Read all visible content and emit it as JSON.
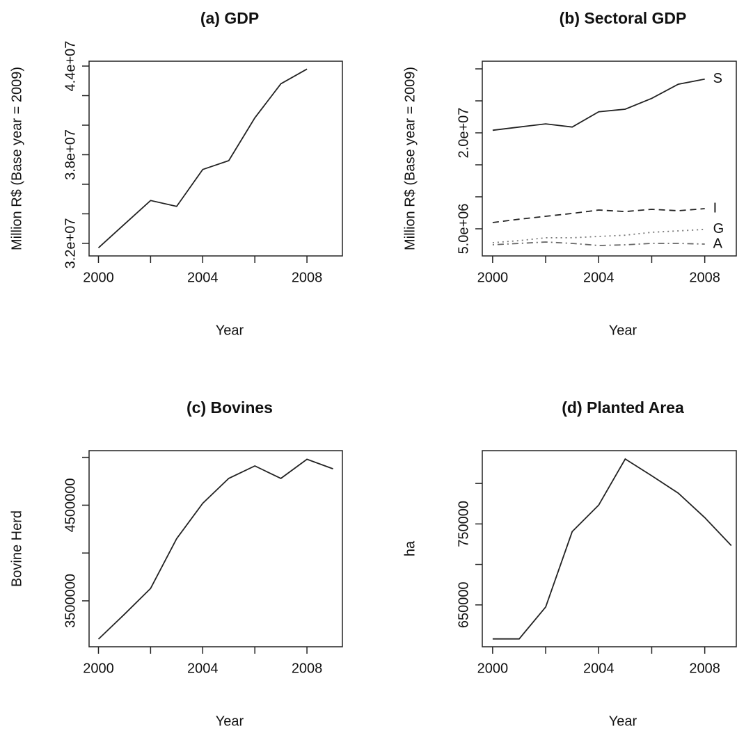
{
  "chart_data": [
    {
      "type": "line",
      "title": "(a) GDP",
      "xlabel": "Year",
      "ylabel": "Million R$ (Base year = 2009)",
      "x": [
        2000,
        2001,
        2002,
        2003,
        2004,
        2005,
        2006,
        2007,
        2008
      ],
      "values": [
        31700000,
        33300000,
        34900000,
        34500000,
        37000000,
        37600000,
        40500000,
        42800000,
        43800000
      ],
      "color": "#222222",
      "xlim": [
        1999.64,
        2009.36
      ],
      "xticks": [
        2000,
        2004,
        2008
      ],
      "xminor_ticks": [
        2002,
        2006
      ],
      "ylim": [
        31150000,
        44330000
      ],
      "yticks": [
        {
          "value": 32000000,
          "label": "3.2e+07"
        },
        {
          "value": 38000000,
          "label": "3.8e+07"
        },
        {
          "value": 44000000,
          "label": "4.4e+07"
        }
      ],
      "yminor_ticks": [
        34000000,
        36000000,
        40000000,
        42000000
      ]
    },
    {
      "type": "line",
      "title": "(b) Sectoral GDP",
      "xlabel": "Year",
      "ylabel": "Million R$ (Base year = 2009)",
      "x": [
        2000,
        2001,
        2002,
        2003,
        2004,
        2005,
        2006,
        2007,
        2008
      ],
      "series": [
        {
          "name": "S",
          "color": "#222222",
          "dash": "solid",
          "values": [
            20400000,
            20900000,
            21400000,
            20900000,
            23300000,
            23700000,
            25400000,
            27600000,
            28400000
          ]
        },
        {
          "name": "I",
          "color": "#222222",
          "dash": "dashed",
          "values": [
            5980000,
            6500000,
            6960000,
            7400000,
            7930000,
            7700000,
            8040000,
            7830000,
            8150000
          ]
        },
        {
          "name": "G",
          "color": "#777777",
          "dash": "dotted",
          "values": [
            2830000,
            3150000,
            3600000,
            3600000,
            3800000,
            4000000,
            4460000,
            4670000,
            4900000
          ]
        },
        {
          "name": "A",
          "color": "#666666",
          "dash": "dotdash",
          "values": [
            2500000,
            2720000,
            2930000,
            2720000,
            2390000,
            2500000,
            2720000,
            2720000,
            2610000
          ]
        }
      ],
      "label_at_end": true,
      "xlim": [
        1999.61,
        2009.19
      ],
      "xticks": [
        2000,
        2004,
        2008
      ],
      "xminor_ticks": [
        2002,
        2006
      ],
      "ylim": [
        760000,
        31200000
      ],
      "yticks": [
        {
          "value": 5000000,
          "label": "5.0e+06"
        },
        {
          "value": 20000000,
          "label": "2.0e+07"
        }
      ],
      "yminor_ticks": [
        10000000,
        15000000,
        25000000,
        30000000
      ]
    },
    {
      "type": "line",
      "title": "(c) Bovines",
      "xlabel": "Year",
      "ylabel": "Bovine Herd",
      "x": [
        2000,
        2001,
        2002,
        2003,
        2004,
        2005,
        2006,
        2007,
        2008,
        2009
      ],
      "values": [
        3100000,
        3360000,
        3630000,
        4150000,
        4520000,
        4780000,
        4910000,
        4780000,
        4980000,
        4880000
      ],
      "color": "#222222",
      "xlim": [
        1999.64,
        2009.36
      ],
      "xticks": [
        2000,
        2004,
        2008
      ],
      "xminor_ticks": [
        2002,
        2006
      ],
      "ylim": [
        3020000,
        5070000
      ],
      "yticks": [
        3500000,
        4500000
      ],
      "yminor_ticks": [
        4000000,
        5000000
      ]
    },
    {
      "type": "line",
      "title": "(d) Planted Area",
      "xlabel": "Year",
      "ylabel": "ha",
      "x": [
        2000,
        2001,
        2002,
        2003,
        2004,
        2005,
        2006,
        2007,
        2008,
        2009
      ],
      "values": [
        608000,
        608000,
        647400,
        740500,
        773300,
        830200,
        809500,
        788000,
        757800,
        723300
      ],
      "color": "#222222",
      "xlim": [
        1999.61,
        2009.19
      ],
      "xticks": [
        2000,
        2004,
        2008
      ],
      "xminor_ticks": [
        2002,
        2006
      ],
      "ylim": [
        598300,
        840500
      ],
      "yticks": [
        650000,
        750000
      ],
      "yminor_ticks": [
        700000,
        800000
      ]
    }
  ]
}
